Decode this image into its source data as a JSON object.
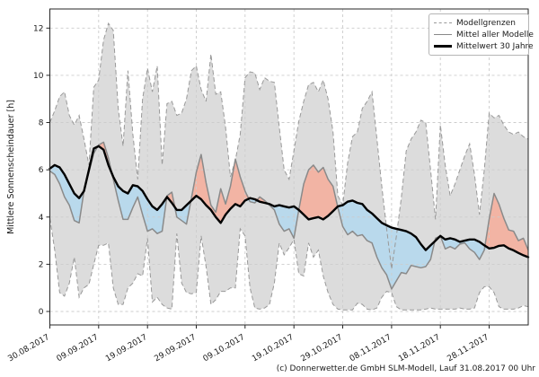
{
  "ylabel": "Mittlere Sonnenscheindauer [h]",
  "footer": "(c) Donnerwetter.de GmbH SLM-Modell, Lauf 31.08.2017 00 Uhr",
  "legend": {
    "items": [
      {
        "label": "Modellgrenzen",
        "style": "dashed-gray-line"
      },
      {
        "label": "Mittel aller Modelle",
        "style": "solid-gray-line"
      },
      {
        "label": "Mittelwert 30 Jahre",
        "style": "thick-black-line"
      }
    ]
  },
  "chart_data": {
    "type": "line",
    "title": "",
    "xlabel": "",
    "ylabel": "Mittlere Sonnenscheindauer [h]",
    "x_unit": "days since 30.08.2017",
    "xlim_days": [
      0,
      98
    ],
    "ylim": [
      -0.57,
      12.81
    ],
    "y_ticks": [
      0,
      2,
      4,
      6,
      8,
      10,
      12
    ],
    "x_tick_days": [
      0,
      10,
      20,
      30,
      40,
      50,
      60,
      70,
      80,
      90
    ],
    "x_tick_labels": [
      "30.08.2017",
      "09.09.2017",
      "19.09.2017",
      "29.09.2017",
      "09.10.2017",
      "19.10.2017",
      "29.10.2017",
      "08.11.2017",
      "18.11.2017",
      "28.11.2017"
    ],
    "grid": true,
    "legend_position": "upper right",
    "colors": {
      "band_fill": "#dcdcdc",
      "band_edge": "#999999",
      "model_mean": "#8a8a8a",
      "climate_mean": "#000000",
      "above_normal_fill": "#f2b4a4",
      "below_normal_fill": "#b9d9ec",
      "grid": "#cccccc",
      "frame": "#262626"
    },
    "series": [
      {
        "key": "upper",
        "name": "Modellgrenzen (obere Grenze)",
        "values": [
          8.0,
          8.5,
          9.1,
          9.3,
          8.3,
          7.9,
          8.3,
          7.3,
          6.2,
          9.5,
          9.8,
          11.5,
          12.2,
          11.9,
          8.6,
          7.0,
          10.2,
          7.5,
          5.6,
          9.0,
          10.3,
          9.3,
          10.4,
          6.2,
          8.8,
          8.9,
          8.3,
          8.4,
          9.0,
          10.2,
          10.4,
          9.4,
          8.9,
          10.9,
          9.2,
          9.3,
          7.8,
          5.7,
          6.4,
          7.5,
          9.9,
          10.15,
          10.1,
          9.4,
          9.9,
          9.75,
          9.7,
          7.8,
          6.0,
          5.6,
          6.8,
          8.05,
          8.9,
          9.6,
          9.7,
          9.3,
          9.8,
          9.0,
          7.6,
          4.9,
          4.5,
          6.3,
          7.4,
          7.6,
          8.6,
          8.9,
          9.3,
          7.3,
          5.3,
          3.5,
          1.8,
          3.2,
          4.8,
          6.8,
          7.3,
          7.6,
          8.1,
          8.0,
          6.0,
          3.9,
          7.9,
          6.2,
          4.9,
          5.4,
          6.0,
          6.6,
          7.1,
          5.8,
          4.1,
          6.0,
          8.4,
          8.2,
          8.3,
          7.9,
          7.6,
          7.5,
          7.6,
          7.4,
          7.3
        ]
      },
      {
        "key": "lower",
        "name": "Modellgrenzen (untere Grenze)",
        "values": [
          3.95,
          2.6,
          0.8,
          0.65,
          1.2,
          2.3,
          0.6,
          1.0,
          1.15,
          2.0,
          2.8,
          2.8,
          2.9,
          1.0,
          0.3,
          0.3,
          1.0,
          1.2,
          1.6,
          1.5,
          3.1,
          0.4,
          0.6,
          0.3,
          0.15,
          0.1,
          3.3,
          1.2,
          0.8,
          0.75,
          0.8,
          3.2,
          1.9,
          0.3,
          0.5,
          0.85,
          0.85,
          1.0,
          1.0,
          3.5,
          3.2,
          1.0,
          0.15,
          0.1,
          0.15,
          0.3,
          1.2,
          2.9,
          2.4,
          2.7,
          3.05,
          1.6,
          1.5,
          2.9,
          2.3,
          2.6,
          1.5,
          0.8,
          0.3,
          0.1,
          0.07,
          0.07,
          0.07,
          0.35,
          0.3,
          0.1,
          0.07,
          0.15,
          0.6,
          0.85,
          0.8,
          0.2,
          0.07,
          0.07,
          0.07,
          0.07,
          0.07,
          0.1,
          0.15,
          0.1,
          0.1,
          0.1,
          0.1,
          0.1,
          0.15,
          0.1,
          0.1,
          0.15,
          0.8,
          1.05,
          1.05,
          0.8,
          0.2,
          0.1,
          0.1,
          0.1,
          0.15,
          0.25,
          0.2
        ]
      },
      {
        "key": "mean",
        "name": "Mittel aller Modelle",
        "values": [
          5.95,
          5.8,
          5.4,
          4.85,
          4.5,
          3.85,
          3.75,
          5.1,
          5.9,
          6.7,
          7.05,
          7.17,
          6.5,
          5.6,
          4.7,
          3.9,
          3.9,
          4.4,
          4.85,
          4.1,
          3.4,
          3.5,
          3.3,
          3.4,
          4.9,
          5.05,
          4.0,
          3.85,
          3.7,
          4.8,
          5.9,
          6.65,
          5.45,
          4.5,
          4.2,
          5.2,
          4.55,
          5.3,
          6.45,
          5.7,
          5.1,
          4.65,
          4.6,
          4.85,
          4.7,
          4.5,
          4.3,
          3.7,
          3.4,
          3.5,
          3.1,
          4.3,
          5.4,
          6.0,
          6.2,
          5.9,
          6.1,
          5.6,
          5.3,
          4.4,
          3.6,
          3.25,
          3.4,
          3.2,
          3.25,
          3.0,
          2.9,
          2.3,
          1.85,
          1.55,
          0.95,
          1.3,
          1.65,
          1.6,
          1.95,
          1.9,
          1.85,
          1.9,
          2.2,
          3.1,
          3.2,
          2.65,
          2.75,
          2.65,
          2.85,
          2.9,
          2.65,
          2.5,
          2.2,
          2.6,
          3.9,
          5.0,
          4.55,
          3.95,
          3.45,
          3.4,
          3.0,
          3.1,
          2.6
        ]
      },
      {
        "key": "climate",
        "name": "Mittelwert 30 Jahre",
        "values": [
          6.05,
          6.2,
          6.1,
          5.8,
          5.4,
          5.0,
          4.8,
          5.1,
          6.0,
          6.9,
          7.0,
          6.85,
          6.2,
          5.7,
          5.3,
          5.1,
          5.0,
          5.35,
          5.3,
          5.1,
          4.75,
          4.45,
          4.3,
          4.55,
          4.85,
          4.6,
          4.3,
          4.3,
          4.5,
          4.7,
          4.9,
          4.75,
          4.5,
          4.3,
          4.0,
          3.75,
          4.1,
          4.35,
          4.55,
          4.45,
          4.7,
          4.8,
          4.75,
          4.65,
          4.6,
          4.55,
          4.45,
          4.5,
          4.45,
          4.4,
          4.45,
          4.3,
          4.1,
          3.9,
          3.95,
          4.0,
          3.9,
          4.05,
          4.25,
          4.45,
          4.5,
          4.65,
          4.7,
          4.6,
          4.55,
          4.3,
          4.15,
          3.95,
          3.75,
          3.65,
          3.55,
          3.5,
          3.45,
          3.4,
          3.3,
          3.15,
          2.85,
          2.6,
          2.8,
          3.0,
          3.2,
          3.05,
          3.1,
          3.05,
          2.95,
          3.0,
          3.05,
          3.05,
          2.95,
          2.8,
          2.67,
          2.7,
          2.78,
          2.8,
          2.67,
          2.59,
          2.48,
          2.38,
          2.3
        ]
      }
    ]
  }
}
